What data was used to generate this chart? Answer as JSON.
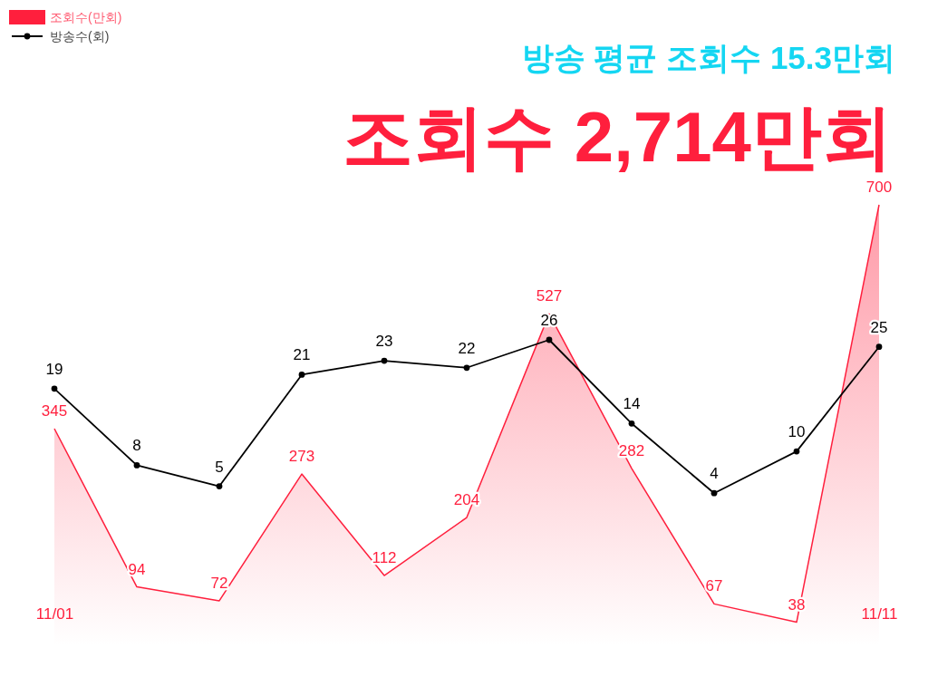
{
  "chart_data": {
    "type": "area",
    "title": "조회수 2,714만회",
    "subtitle": "방송 평균 조회수 15.3만회",
    "categories": [
      "11/01",
      null,
      null,
      null,
      null,
      null,
      null,
      null,
      null,
      null,
      "11/11"
    ],
    "series": [
      {
        "name": "조회수(만회)",
        "color": "#ff1f3d",
        "values": [
          345,
          94,
          72,
          273,
          112,
          204,
          527,
          282,
          67,
          38,
          700
        ]
      },
      {
        "name": "방송수(회)",
        "type": "line",
        "axis": "y2",
        "color": "#000000",
        "marker": "circle",
        "values": [
          19,
          8,
          5,
          21,
          23,
          22,
          26,
          14,
          4,
          10,
          25
        ]
      }
    ],
    "data_labels": true,
    "legend": "top left",
    "tick_labels": "x"
  }
}
